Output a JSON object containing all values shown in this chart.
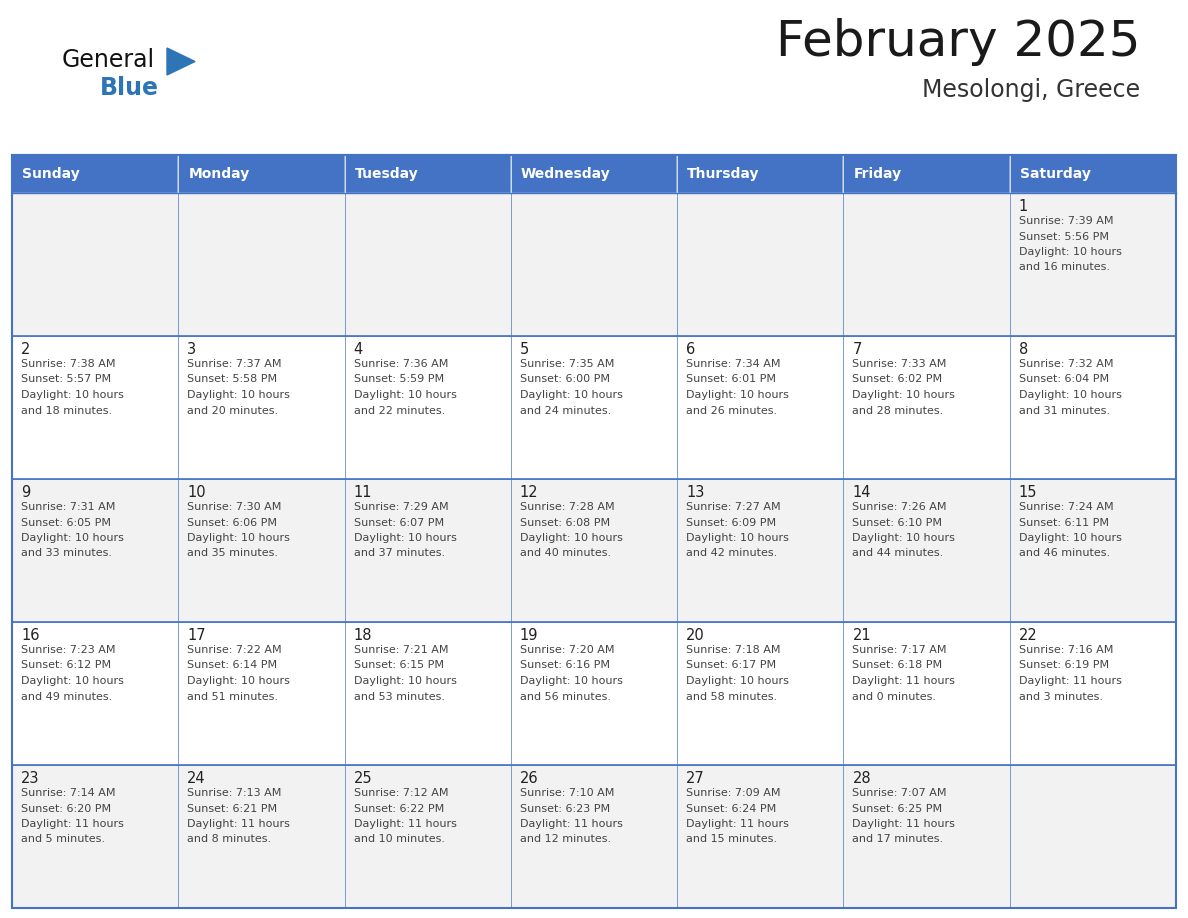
{
  "title": "February 2025",
  "subtitle": "Mesolongi, Greece",
  "header_bg": "#4472C4",
  "header_text_color": "#FFFFFF",
  "border_color": "#4472C4",
  "days_of_week": [
    "Sunday",
    "Monday",
    "Tuesday",
    "Wednesday",
    "Thursday",
    "Friday",
    "Saturday"
  ],
  "calendar": [
    [
      null,
      null,
      null,
      null,
      null,
      null,
      {
        "day": 1,
        "sunrise": "7:39 AM",
        "sunset": "5:56 PM",
        "daylight1": "10 hours",
        "daylight2": "and 16 minutes."
      }
    ],
    [
      {
        "day": 2,
        "sunrise": "7:38 AM",
        "sunset": "5:57 PM",
        "daylight1": "10 hours",
        "daylight2": "and 18 minutes."
      },
      {
        "day": 3,
        "sunrise": "7:37 AM",
        "sunset": "5:58 PM",
        "daylight1": "10 hours",
        "daylight2": "and 20 minutes."
      },
      {
        "day": 4,
        "sunrise": "7:36 AM",
        "sunset": "5:59 PM",
        "daylight1": "10 hours",
        "daylight2": "and 22 minutes."
      },
      {
        "day": 5,
        "sunrise": "7:35 AM",
        "sunset": "6:00 PM",
        "daylight1": "10 hours",
        "daylight2": "and 24 minutes."
      },
      {
        "day": 6,
        "sunrise": "7:34 AM",
        "sunset": "6:01 PM",
        "daylight1": "10 hours",
        "daylight2": "and 26 minutes."
      },
      {
        "day": 7,
        "sunrise": "7:33 AM",
        "sunset": "6:02 PM",
        "daylight1": "10 hours",
        "daylight2": "and 28 minutes."
      },
      {
        "day": 8,
        "sunrise": "7:32 AM",
        "sunset": "6:04 PM",
        "daylight1": "10 hours",
        "daylight2": "and 31 minutes."
      }
    ],
    [
      {
        "day": 9,
        "sunrise": "7:31 AM",
        "sunset": "6:05 PM",
        "daylight1": "10 hours",
        "daylight2": "and 33 minutes."
      },
      {
        "day": 10,
        "sunrise": "7:30 AM",
        "sunset": "6:06 PM",
        "daylight1": "10 hours",
        "daylight2": "and 35 minutes."
      },
      {
        "day": 11,
        "sunrise": "7:29 AM",
        "sunset": "6:07 PM",
        "daylight1": "10 hours",
        "daylight2": "and 37 minutes."
      },
      {
        "day": 12,
        "sunrise": "7:28 AM",
        "sunset": "6:08 PM",
        "daylight1": "10 hours",
        "daylight2": "and 40 minutes."
      },
      {
        "day": 13,
        "sunrise": "7:27 AM",
        "sunset": "6:09 PM",
        "daylight1": "10 hours",
        "daylight2": "and 42 minutes."
      },
      {
        "day": 14,
        "sunrise": "7:26 AM",
        "sunset": "6:10 PM",
        "daylight1": "10 hours",
        "daylight2": "and 44 minutes."
      },
      {
        "day": 15,
        "sunrise": "7:24 AM",
        "sunset": "6:11 PM",
        "daylight1": "10 hours",
        "daylight2": "and 46 minutes."
      }
    ],
    [
      {
        "day": 16,
        "sunrise": "7:23 AM",
        "sunset": "6:12 PM",
        "daylight1": "10 hours",
        "daylight2": "and 49 minutes."
      },
      {
        "day": 17,
        "sunrise": "7:22 AM",
        "sunset": "6:14 PM",
        "daylight1": "10 hours",
        "daylight2": "and 51 minutes."
      },
      {
        "day": 18,
        "sunrise": "7:21 AM",
        "sunset": "6:15 PM",
        "daylight1": "10 hours",
        "daylight2": "and 53 minutes."
      },
      {
        "day": 19,
        "sunrise": "7:20 AM",
        "sunset": "6:16 PM",
        "daylight1": "10 hours",
        "daylight2": "and 56 minutes."
      },
      {
        "day": 20,
        "sunrise": "7:18 AM",
        "sunset": "6:17 PM",
        "daylight1": "10 hours",
        "daylight2": "and 58 minutes."
      },
      {
        "day": 21,
        "sunrise": "7:17 AM",
        "sunset": "6:18 PM",
        "daylight1": "11 hours",
        "daylight2": "and 0 minutes."
      },
      {
        "day": 22,
        "sunrise": "7:16 AM",
        "sunset": "6:19 PM",
        "daylight1": "11 hours",
        "daylight2": "and 3 minutes."
      }
    ],
    [
      {
        "day": 23,
        "sunrise": "7:14 AM",
        "sunset": "6:20 PM",
        "daylight1": "11 hours",
        "daylight2": "and 5 minutes."
      },
      {
        "day": 24,
        "sunrise": "7:13 AM",
        "sunset": "6:21 PM",
        "daylight1": "11 hours",
        "daylight2": "and 8 minutes."
      },
      {
        "day": 25,
        "sunrise": "7:12 AM",
        "sunset": "6:22 PM",
        "daylight1": "11 hours",
        "daylight2": "and 10 minutes."
      },
      {
        "day": 26,
        "sunrise": "7:10 AM",
        "sunset": "6:23 PM",
        "daylight1": "11 hours",
        "daylight2": "and 12 minutes."
      },
      {
        "day": 27,
        "sunrise": "7:09 AM",
        "sunset": "6:24 PM",
        "daylight1": "11 hours",
        "daylight2": "and 15 minutes."
      },
      {
        "day": 28,
        "sunrise": "7:07 AM",
        "sunset": "6:25 PM",
        "daylight1": "11 hours",
        "daylight2": "and 17 minutes."
      },
      null
    ]
  ],
  "logo_general_color": "#111111",
  "logo_blue_color": "#2E75B6",
  "logo_triangle_color": "#2E75B6",
  "row_colors": [
    "#F2F2F2",
    "#FFFFFF",
    "#F2F2F2",
    "#FFFFFF",
    "#F2F2F2"
  ]
}
